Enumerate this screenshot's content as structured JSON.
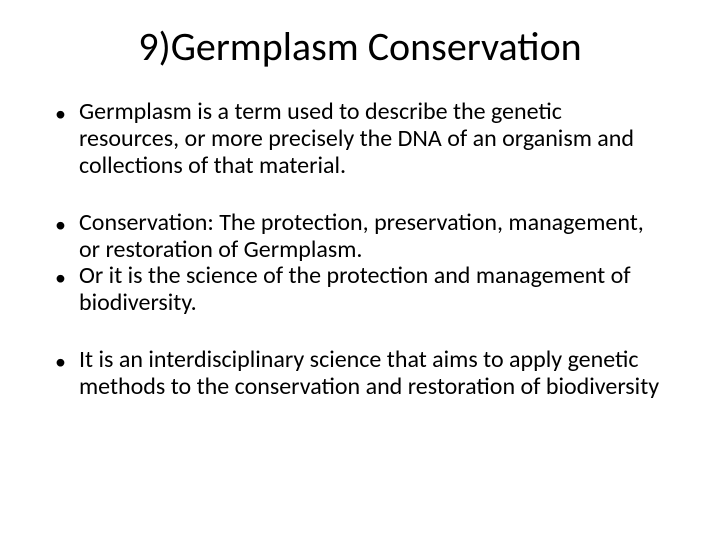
{
  "title": "9)Germplasm Conservation",
  "bullets": [
    {
      "text": "Germplasm is a term used to describe the genetic resources, or more precisely the DNA of an organism and collections of that material."
    },
    {
      "text": "Conservation: The protection, preservation, management, or restoration of  Germplasm."
    },
    {
      "text": "Or it is the science of the protection and management of biodiversity."
    },
    {
      "text": "It is an interdisciplinary science that aims to apply genetic methods to the conservation and restoration of biodiversity"
    }
  ],
  "style": {
    "background_color": "#ffffff",
    "text_color": "#000000",
    "title_fontsize": 40,
    "body_fontsize": 24,
    "bullet_marker": "•"
  }
}
